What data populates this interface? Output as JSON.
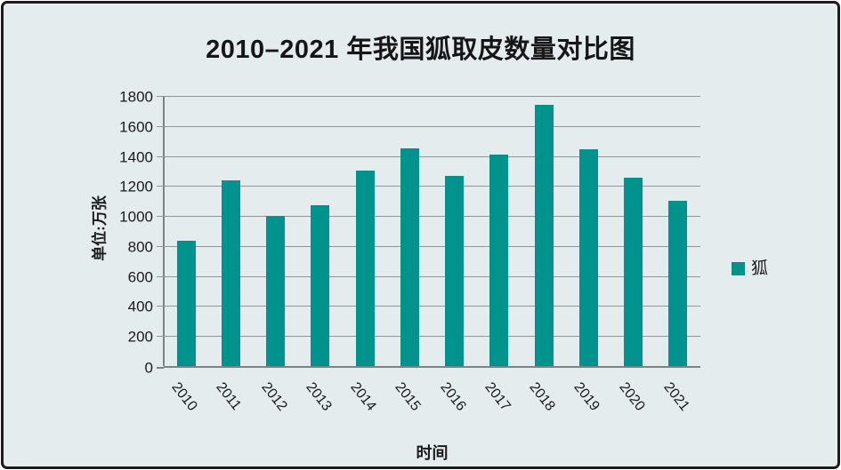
{
  "window": {
    "background_color": "#E5ECED",
    "border_color": "#1c1c1c"
  },
  "chart_data": {
    "type": "bar",
    "title": "2010–2021 年我国狐取皮数量对比图",
    "xlabel": "时间",
    "ylabel": "单位:万张",
    "categories": [
      "2010",
      "2011",
      "2012",
      "2013",
      "2014",
      "2015",
      "2016",
      "2017",
      "2018",
      "2019",
      "2020",
      "2021"
    ],
    "values": [
      835,
      1240,
      1000,
      1070,
      1300,
      1450,
      1265,
      1410,
      1740,
      1445,
      1255,
      1100
    ],
    "ylim": [
      0,
      1800
    ],
    "ytick_step": 200,
    "ytick_labels": [
      "0",
      "200",
      "400",
      "600",
      "800",
      "1000",
      "1200",
      "1400",
      "1600",
      "1800"
    ],
    "grid": "horizontal",
    "bar_color": "#00928C",
    "gridline_color": "#8E9797",
    "axis_color": "#7A8484",
    "legend": {
      "position": "right",
      "entries": [
        {
          "label": "狐",
          "color": "#00928C"
        }
      ]
    }
  }
}
